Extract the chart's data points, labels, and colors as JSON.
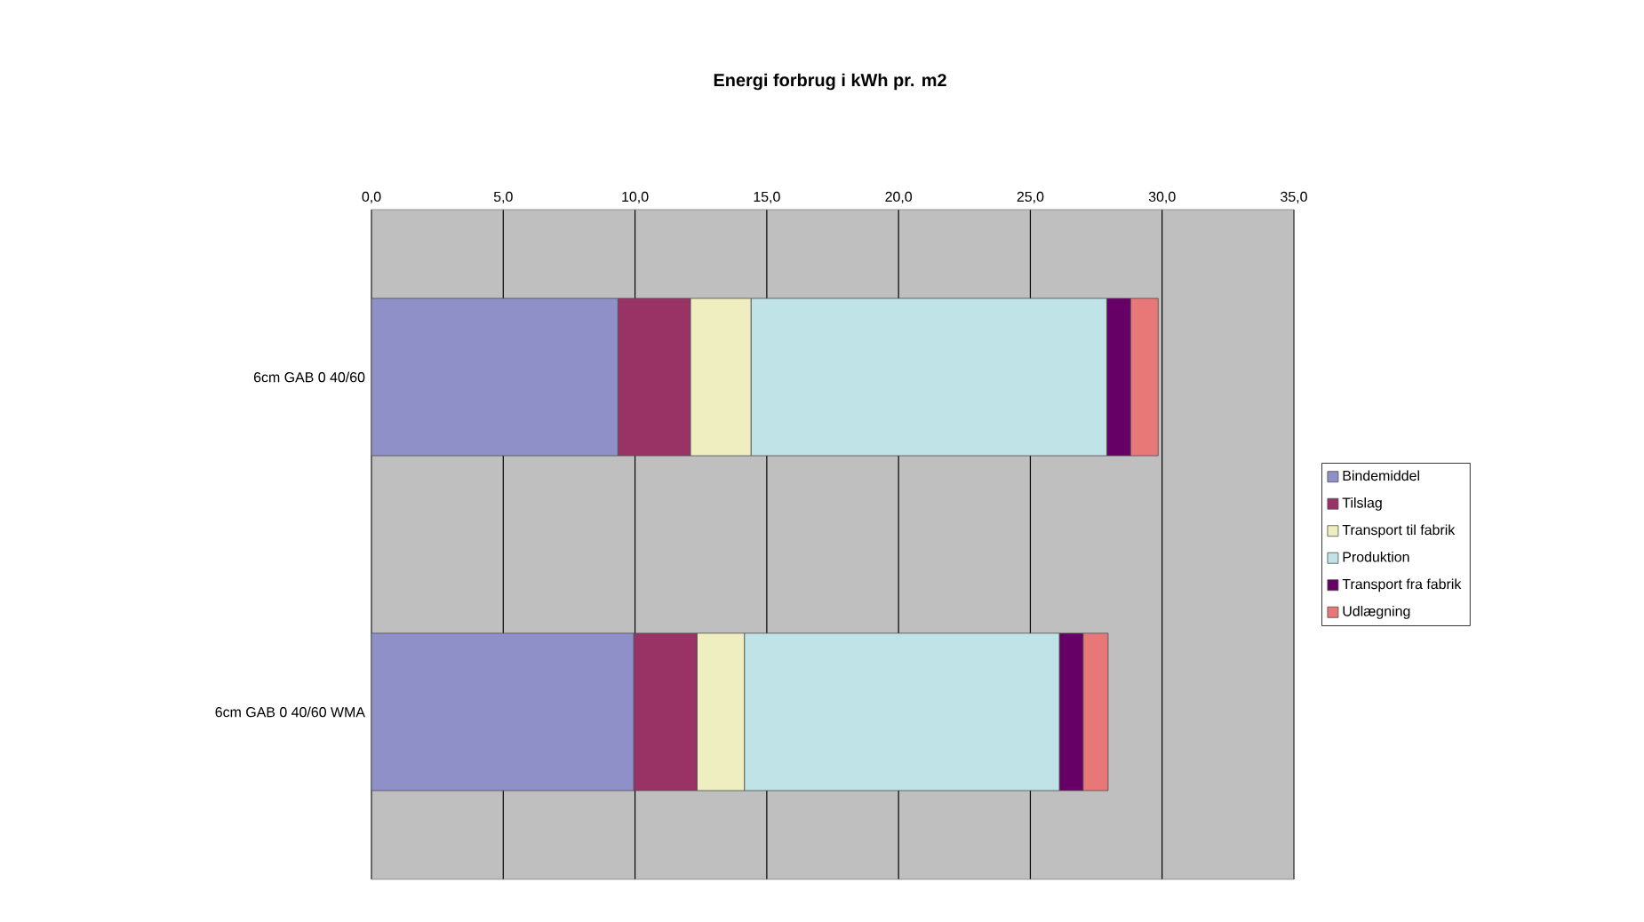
{
  "chart_data": {
    "type": "bar",
    "orientation": "horizontal",
    "stacked": true,
    "title": "Energi forbrug i kWh pr. m2",
    "categories": [
      "6cm GAB 0 40/60",
      "6cm GAB 0 40/60 WMA"
    ],
    "series": [
      {
        "name": "Bindemiddel",
        "color": "#9090c8",
        "values": [
          9.35,
          9.95
        ]
      },
      {
        "name": "Tilslag",
        "color": "#993366",
        "values": [
          2.75,
          2.4
        ]
      },
      {
        "name": "Transport til fabrik",
        "color": "#eeeec0",
        "values": [
          2.3,
          1.8
        ]
      },
      {
        "name": "Produktion",
        "color": "#bfe3e6",
        "values": [
          13.5,
          11.95
        ]
      },
      {
        "name": "Transport fra fabrik",
        "color": "#660066",
        "values": [
          0.9,
          0.9
        ]
      },
      {
        "name": "Udlægning",
        "color": "#e87878",
        "values": [
          1.05,
          0.95
        ]
      }
    ],
    "xlim": [
      0,
      35
    ],
    "xticks": [
      {
        "value": 0,
        "label": "0,0"
      },
      {
        "value": 5,
        "label": "5,0"
      },
      {
        "value": 10,
        "label": "10,0"
      },
      {
        "value": 15,
        "label": "15,0"
      },
      {
        "value": 20,
        "label": "20,0"
      },
      {
        "value": 25,
        "label": "25,0"
      },
      {
        "value": 30,
        "label": "30,0"
      },
      {
        "value": 35,
        "label": "35,0"
      }
    ],
    "grid": "x",
    "legend": "right"
  }
}
